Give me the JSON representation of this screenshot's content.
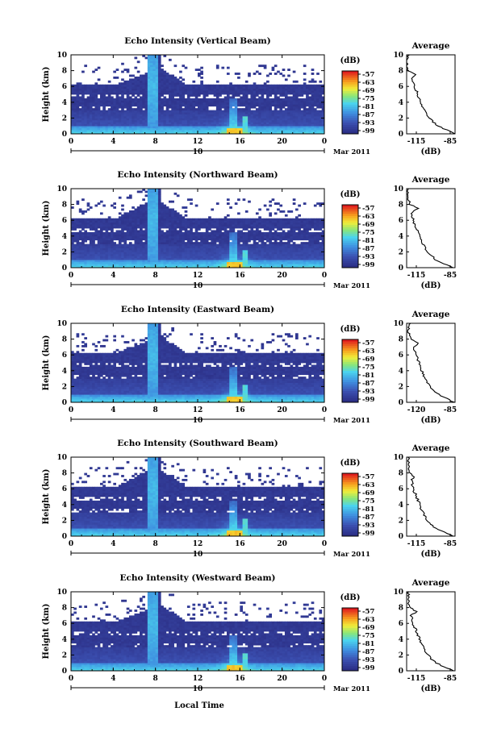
{
  "figure": {
    "x_axis_label": "Local Time",
    "x_date_label": "Mar 2011",
    "x_day_tick": "10"
  },
  "chart_data": [
    {
      "type": "heatmap",
      "title": "Echo Intensity (Vertical Beam)",
      "xlabel": "Local Time",
      "ylabel": "Height (km)",
      "xlim": [
        0,
        24
      ],
      "ylim": [
        0,
        10
      ],
      "xticks": [
        "0",
        "4",
        "8",
        "12",
        "16",
        "20",
        "0"
      ],
      "yticks": [
        "0",
        "2",
        "4",
        "6",
        "8",
        "10"
      ],
      "colorbar": {
        "unit": "(dB)",
        "ticks": [
          "-57",
          "-63",
          "-69",
          "-75",
          "-81",
          "-87",
          "-93",
          "-99"
        ]
      },
      "profile": {
        "title": "Average",
        "xlabel": "(dB)",
        "xticks": [
          "-115",
          "-85"
        ],
        "xlim": [
          -115,
          -85
        ],
        "height_km": [
          0,
          1,
          2,
          3,
          4,
          5,
          6,
          7,
          7.5,
          8,
          9,
          10
        ],
        "mean_db": [
          -85,
          -96,
          -101,
          -104,
          -106,
          -108,
          -110,
          -112,
          -109,
          -114,
          -115,
          -114
        ]
      }
    },
    {
      "type": "heatmap",
      "title": "Echo Intensity (Northward Beam)",
      "xlabel": "Local Time",
      "ylabel": "Height (km)",
      "xlim": [
        0,
        24
      ],
      "ylim": [
        0,
        10
      ],
      "xticks": [
        "0",
        "4",
        "8",
        "12",
        "16",
        "20",
        "0"
      ],
      "yticks": [
        "0",
        "2",
        "4",
        "6",
        "8",
        "10"
      ],
      "colorbar": {
        "unit": "(dB)",
        "ticks": [
          "-57",
          "-63",
          "-69",
          "-75",
          "-81",
          "-87",
          "-93",
          "-99"
        ]
      },
      "profile": {
        "title": "Average",
        "xlabel": "(dB)",
        "xticks": [
          "-115",
          "-85"
        ],
        "xlim": [
          -115,
          -85
        ],
        "height_km": [
          0,
          1,
          2,
          3,
          4,
          5,
          6,
          7,
          7.5,
          8,
          9,
          10
        ],
        "mean_db": [
          -86,
          -97,
          -102,
          -105,
          -107,
          -109,
          -111,
          -112,
          -108,
          -113,
          -114,
          -114
        ]
      }
    },
    {
      "type": "heatmap",
      "title": "Echo Intensity (Eastward Beam)",
      "xlabel": "Local Time",
      "ylabel": "Height (km)",
      "xlim": [
        0,
        24
      ],
      "ylim": [
        0,
        10
      ],
      "xticks": [
        "0",
        "4",
        "8",
        "12",
        "16",
        "20",
        "0"
      ],
      "yticks": [
        "0",
        "2",
        "4",
        "6",
        "8",
        "10"
      ],
      "colorbar": {
        "unit": "(dB)",
        "ticks": [
          "-57",
          "-63",
          "-69",
          "-75",
          "-81",
          "-87",
          "-93",
          "-99"
        ]
      },
      "profile": {
        "title": "Average",
        "xlabel": "(dB)",
        "xticks": [
          "-120",
          "-85"
        ],
        "xlim": [
          -120,
          -85
        ],
        "height_km": [
          0,
          1,
          2,
          3,
          4,
          5,
          6,
          7,
          7.5,
          8,
          9,
          10
        ],
        "mean_db": [
          -86,
          -97,
          -103,
          -107,
          -109,
          -111,
          -113,
          -115,
          -111,
          -117,
          -119,
          -118
        ]
      }
    },
    {
      "type": "heatmap",
      "title": "Echo Intensity (Southward Beam)",
      "xlabel": "Local Time",
      "ylabel": "Height (km)",
      "xlim": [
        0,
        24
      ],
      "ylim": [
        0,
        10
      ],
      "xticks": [
        "0",
        "4",
        "8",
        "12",
        "16",
        "20",
        "0"
      ],
      "yticks": [
        "0",
        "2",
        "4",
        "6",
        "8",
        "10"
      ],
      "colorbar": {
        "unit": "(dB)",
        "ticks": [
          "-57",
          "-63",
          "-69",
          "-75",
          "-81",
          "-87",
          "-93",
          "-99"
        ]
      },
      "profile": {
        "title": "Average",
        "xlabel": "(dB)",
        "xticks": [
          "-115",
          "-85"
        ],
        "xlim": [
          -115,
          -85
        ],
        "height_km": [
          0,
          1,
          2,
          3,
          4,
          5,
          6,
          7,
          7.5,
          8,
          9,
          10
        ],
        "mean_db": [
          -86,
          -97,
          -102,
          -105,
          -107,
          -109,
          -111,
          -112,
          -111,
          -113,
          -114,
          -114
        ]
      }
    },
    {
      "type": "heatmap",
      "title": "Echo Intensity (Westward Beam)",
      "xlabel": "Local Time",
      "ylabel": "Height (km)",
      "xlim": [
        0,
        24
      ],
      "ylim": [
        0,
        10
      ],
      "xticks": [
        "0",
        "4",
        "8",
        "12",
        "16",
        "20",
        "0"
      ],
      "yticks": [
        "0",
        "2",
        "4",
        "6",
        "8",
        "10"
      ],
      "colorbar": {
        "unit": "(dB)",
        "ticks": [
          "-57",
          "-63",
          "-69",
          "-75",
          "-81",
          "-87",
          "-93",
          "-99"
        ]
      },
      "profile": {
        "title": "Average",
        "xlabel": "(dB)",
        "xticks": [
          "-115",
          "-85"
        ],
        "xlim": [
          -115,
          -85
        ],
        "height_km": [
          0,
          1,
          2,
          3,
          4,
          5,
          6,
          7,
          7.5,
          8,
          9,
          10
        ],
        "mean_db": [
          -86,
          -97,
          -102,
          -105,
          -107,
          -109,
          -111,
          -112,
          -109,
          -113,
          -114,
          -114
        ]
      }
    }
  ]
}
